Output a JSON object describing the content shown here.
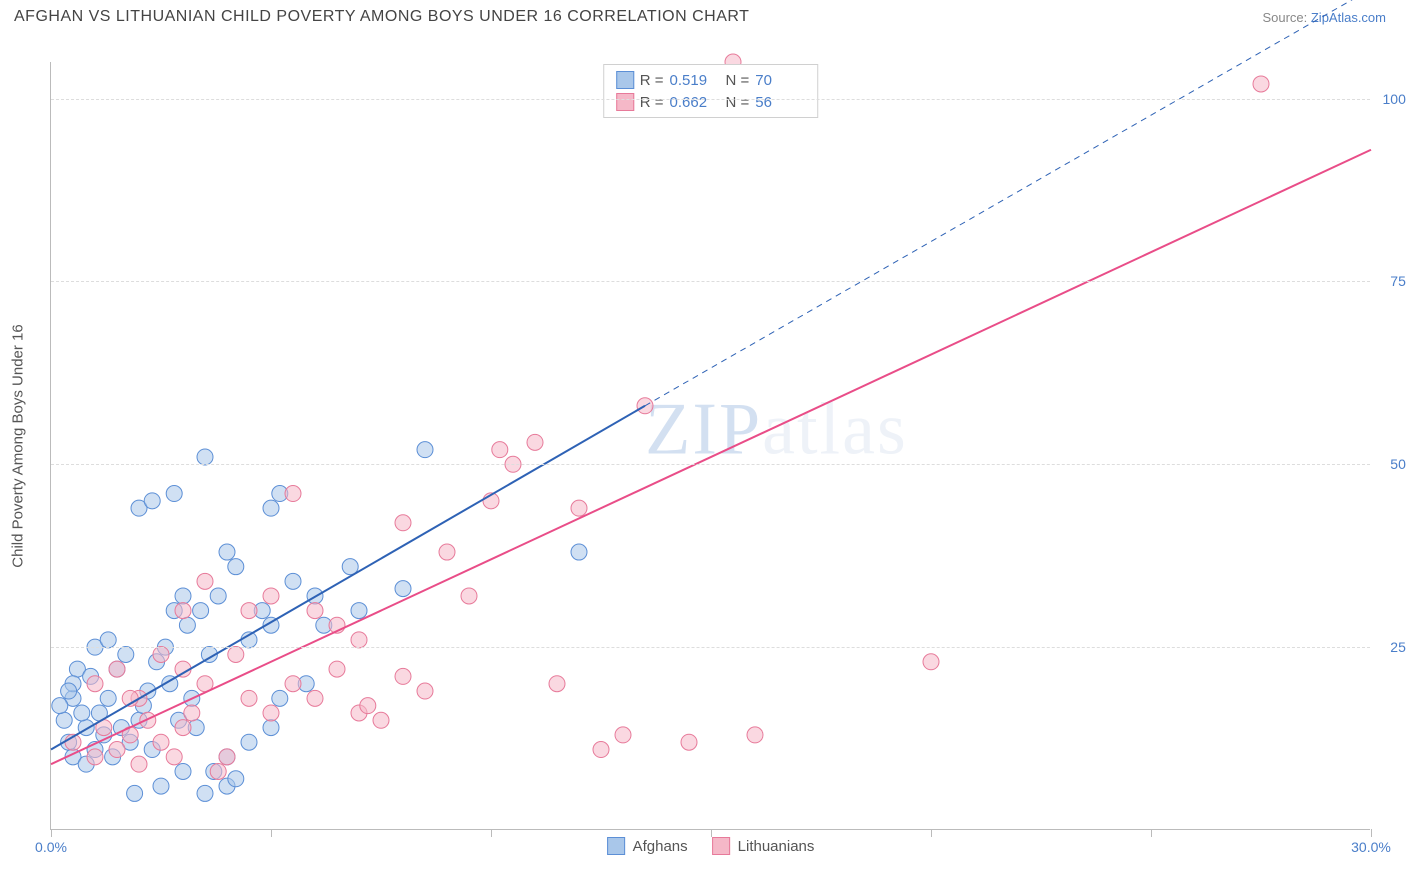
{
  "header": {
    "title": "AFGHAN VS LITHUANIAN CHILD POVERTY AMONG BOYS UNDER 16 CORRELATION CHART",
    "source_prefix": "Source: ",
    "source_link": "ZipAtlas.com"
  },
  "chart": {
    "type": "scatter",
    "y_axis_label": "Child Poverty Among Boys Under 16",
    "xlim": [
      0,
      30
    ],
    "ylim": [
      0,
      105
    ],
    "x_ticks": [
      0,
      5,
      10,
      15,
      20,
      25,
      30
    ],
    "x_tick_labels": {
      "0": "0.0%",
      "30": "30.0%"
    },
    "y_gridlines": [
      25,
      50,
      75,
      100
    ],
    "y_tick_labels": {
      "25": "25.0%",
      "50": "50.0%",
      "75": "75.0%",
      "100": "100.0%"
    },
    "background_color": "#ffffff",
    "grid_color": "#dddddd",
    "axis_color": "#bbbbbb",
    "tick_label_color": "#4a7ec9",
    "watermark_text": "ZIPatlas",
    "series": [
      {
        "name": "Afghans",
        "color_fill": "#a9c7ea",
        "color_stroke": "#5c8fd6",
        "fill_opacity": 0.55,
        "marker_radius": 8,
        "R": "0.519",
        "N": "70",
        "trend": {
          "x1": 0,
          "y1": 11,
          "x2": 13.5,
          "y2": 58,
          "x2_dash": 30,
          "y2_dash": 115,
          "stroke": "#2e62b5",
          "width": 2
        },
        "points": [
          [
            0.3,
            15
          ],
          [
            0.5,
            18
          ],
          [
            0.4,
            12
          ],
          [
            0.6,
            22
          ],
          [
            0.8,
            14
          ],
          [
            0.5,
            20
          ],
          [
            0.2,
            17
          ],
          [
            0.7,
            16
          ],
          [
            0.4,
            19
          ],
          [
            0.9,
            21
          ],
          [
            1.0,
            11
          ],
          [
            1.2,
            13
          ],
          [
            1.1,
            16
          ],
          [
            1.4,
            10
          ],
          [
            1.3,
            18
          ],
          [
            1.6,
            14
          ],
          [
            1.5,
            22
          ],
          [
            1.8,
            12
          ],
          [
            1.7,
            24
          ],
          [
            2.0,
            15
          ],
          [
            2.2,
            19
          ],
          [
            2.1,
            17
          ],
          [
            2.4,
            23
          ],
          [
            2.3,
            11
          ],
          [
            2.6,
            25
          ],
          [
            2.8,
            30
          ],
          [
            2.7,
            20
          ],
          [
            3.0,
            32
          ],
          [
            2.9,
            15
          ],
          [
            3.2,
            18
          ],
          [
            3.1,
            28
          ],
          [
            3.4,
            30
          ],
          [
            3.3,
            14
          ],
          [
            3.6,
            24
          ],
          [
            3.8,
            32
          ],
          [
            3.5,
            5
          ],
          [
            3.7,
            8
          ],
          [
            4.0,
            6
          ],
          [
            4.2,
            7
          ],
          [
            1.9,
            5
          ],
          [
            2.5,
            6
          ],
          [
            2.0,
            44
          ],
          [
            2.3,
            45
          ],
          [
            2.8,
            46
          ],
          [
            3.5,
            51
          ],
          [
            5.0,
            44
          ],
          [
            5.2,
            46
          ],
          [
            4.0,
            38
          ],
          [
            4.2,
            36
          ],
          [
            4.5,
            26
          ],
          [
            4.8,
            30
          ],
          [
            5.0,
            28
          ],
          [
            5.2,
            18
          ],
          [
            5.5,
            34
          ],
          [
            5.8,
            20
          ],
          [
            6.0,
            32
          ],
          [
            6.2,
            28
          ],
          [
            6.8,
            36
          ],
          [
            7.0,
            30
          ],
          [
            8.0,
            33
          ],
          [
            8.5,
            52
          ],
          [
            4.0,
            10
          ],
          [
            4.5,
            12
          ],
          [
            5.0,
            14
          ],
          [
            1.0,
            25
          ],
          [
            1.3,
            26
          ],
          [
            0.5,
            10
          ],
          [
            0.8,
            9
          ],
          [
            12.0,
            38
          ],
          [
            3.0,
            8
          ]
        ]
      },
      {
        "name": "Lithuanians",
        "color_fill": "#f5b8c8",
        "color_stroke": "#e77a9a",
        "fill_opacity": 0.55,
        "marker_radius": 8,
        "R": "0.662",
        "N": "56",
        "trend": {
          "x1": 0,
          "y1": 9,
          "x2": 30,
          "y2": 93,
          "stroke": "#e94d88",
          "width": 2
        },
        "points": [
          [
            0.5,
            12
          ],
          [
            1.0,
            10
          ],
          [
            1.2,
            14
          ],
          [
            1.5,
            11
          ],
          [
            1.8,
            13
          ],
          [
            2.0,
            9
          ],
          [
            2.2,
            15
          ],
          [
            2.5,
            12
          ],
          [
            2.8,
            10
          ],
          [
            3.0,
            14
          ],
          [
            3.2,
            16
          ],
          [
            3.5,
            20
          ],
          [
            1.0,
            20
          ],
          [
            1.5,
            22
          ],
          [
            2.0,
            18
          ],
          [
            3.0,
            22
          ],
          [
            3.8,
            8
          ],
          [
            4.0,
            10
          ],
          [
            4.5,
            18
          ],
          [
            5.0,
            16
          ],
          [
            5.5,
            20
          ],
          [
            6.0,
            18
          ],
          [
            6.5,
            22
          ],
          [
            7.0,
            16
          ],
          [
            7.2,
            17
          ],
          [
            7.5,
            15
          ],
          [
            8.0,
            21
          ],
          [
            8.5,
            19
          ],
          [
            9.0,
            38
          ],
          [
            9.5,
            32
          ],
          [
            10.0,
            45
          ],
          [
            10.2,
            52
          ],
          [
            10.5,
            50
          ],
          [
            11.0,
            53
          ],
          [
            11.5,
            20
          ],
          [
            12.0,
            44
          ],
          [
            12.5,
            11
          ],
          [
            13.0,
            13
          ],
          [
            13.5,
            58
          ],
          [
            14.5,
            12
          ],
          [
            16.0,
            13
          ],
          [
            5.5,
            46
          ],
          [
            6.0,
            30
          ],
          [
            6.5,
            28
          ],
          [
            7.0,
            26
          ],
          [
            8.0,
            42
          ],
          [
            4.5,
            30
          ],
          [
            5.0,
            32
          ],
          [
            15.5,
            105
          ],
          [
            20.0,
            23
          ],
          [
            27.5,
            102
          ],
          [
            3.0,
            30
          ],
          [
            3.5,
            34
          ],
          [
            2.5,
            24
          ],
          [
            1.8,
            18
          ],
          [
            4.2,
            24
          ]
        ]
      }
    ],
    "legend_bottom": [
      {
        "label": "Afghans",
        "fill": "#a9c7ea",
        "stroke": "#5c8fd6"
      },
      {
        "label": "Lithuanians",
        "fill": "#f5b8c8",
        "stroke": "#e77a9a"
      }
    ]
  }
}
